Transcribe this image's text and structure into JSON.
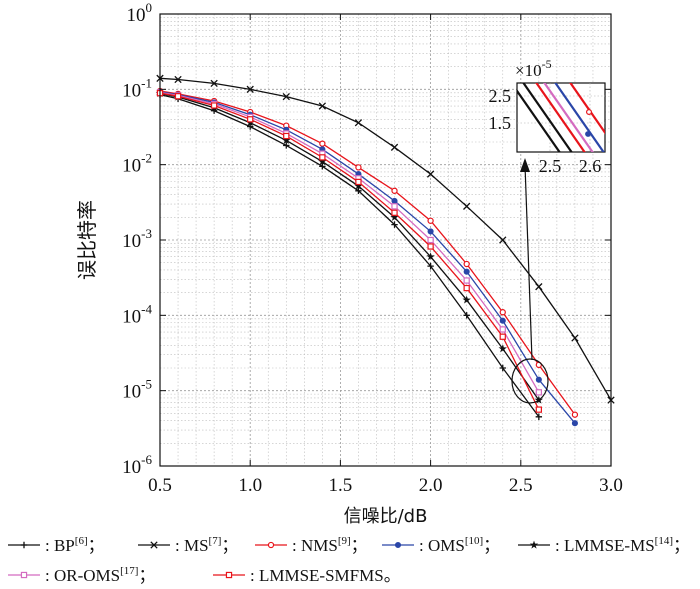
{
  "chart_data": {
    "type": "line",
    "xlabel": "信噪比/dB",
    "ylabel": "误比特率",
    "y_scale": "log",
    "xlim": [
      0.5,
      3.0
    ],
    "ylim_exp": [
      -6,
      0
    ],
    "x_ticks": [
      "0.5",
      "1.0",
      "1.5",
      "2.0",
      "2.5",
      "3.0"
    ],
    "y_tick_base": "10",
    "y_tick_exps": [
      "0",
      "-1",
      "-2",
      "-3",
      "-4",
      "-5",
      "-6"
    ],
    "grid": true,
    "series": [
      {
        "name": "BP",
        "ref": "[6]",
        "sep": "；",
        "color": "#111111",
        "marker": "plus",
        "x": [
          0.5,
          0.6,
          0.8,
          1.0,
          1.2,
          1.4,
          1.6,
          1.8,
          2.0,
          2.2,
          2.4,
          2.6
        ],
        "y": [
          0.085,
          0.075,
          0.052,
          0.032,
          0.018,
          0.0095,
          0.0045,
          0.0016,
          0.00045,
          0.0001,
          2e-05,
          4.5e-06
        ]
      },
      {
        "name": "MS",
        "ref": "[7]",
        "sep": "；",
        "color": "#111111",
        "marker": "x",
        "x": [
          0.5,
          0.6,
          0.8,
          1.0,
          1.2,
          1.4,
          1.6,
          1.8,
          2.0,
          2.2,
          2.4,
          2.6,
          2.8,
          3.0
        ],
        "y": [
          0.14,
          0.135,
          0.12,
          0.1,
          0.08,
          0.06,
          0.036,
          0.017,
          0.0075,
          0.0028,
          0.001,
          0.00024,
          5e-05,
          7.5e-06
        ]
      },
      {
        "name": "NMS",
        "ref": "[9]",
        "sep": "；",
        "color": "#e8141b",
        "marker": "circle",
        "x": [
          0.5,
          0.6,
          0.8,
          1.0,
          1.2,
          1.4,
          1.6,
          1.8,
          2.0,
          2.2,
          2.4,
          2.6,
          2.8
        ],
        "y": [
          0.095,
          0.087,
          0.07,
          0.05,
          0.033,
          0.019,
          0.0092,
          0.0045,
          0.0018,
          0.00048,
          0.00011,
          2.2e-05,
          4.8e-06
        ]
      },
      {
        "name": "OMS",
        "ref": "[10]",
        "sep": "；",
        "color": "#2a46a8",
        "marker": "dot",
        "x": [
          0.5,
          0.6,
          0.8,
          1.0,
          1.2,
          1.4,
          1.6,
          1.8,
          2.0,
          2.2,
          2.4,
          2.6,
          2.8
        ],
        "y": [
          0.093,
          0.085,
          0.067,
          0.046,
          0.029,
          0.016,
          0.0075,
          0.0033,
          0.0013,
          0.00038,
          8.5e-05,
          1.4e-05,
          3.7e-06
        ]
      },
      {
        "name": "LMMSE-MS",
        "ref": "[14]",
        "sep": "；",
        "color": "#111111",
        "marker": "star",
        "x": [
          0.5,
          0.6,
          0.8,
          1.0,
          1.2,
          1.4,
          1.6,
          1.8,
          2.0,
          2.2,
          2.4,
          2.6
        ],
        "y": [
          0.088,
          0.079,
          0.057,
          0.036,
          0.021,
          0.011,
          0.0052,
          0.002,
          0.0006,
          0.00016,
          3.6e-05,
          7.5e-06
        ]
      },
      {
        "name": "OR-OMS",
        "ref": "[17]",
        "sep": "；",
        "color": "#d46bc0",
        "marker": "square",
        "x": [
          0.5,
          0.6,
          0.8,
          1.0,
          1.2,
          1.4,
          1.6,
          1.8,
          2.0,
          2.2,
          2.4,
          2.6
        ],
        "y": [
          0.091,
          0.083,
          0.064,
          0.043,
          0.026,
          0.014,
          0.0066,
          0.0028,
          0.001,
          0.00029,
          6.5e-05,
          9.5e-06
        ]
      },
      {
        "name": "LMMSE-SMFMS",
        "ref": "",
        "sep": "。",
        "color": "#e8141b",
        "marker": "square",
        "x": [
          0.5,
          0.6,
          0.8,
          1.0,
          1.2,
          1.4,
          1.6,
          1.8,
          2.0,
          2.2,
          2.4,
          2.6
        ],
        "y": [
          0.089,
          0.081,
          0.061,
          0.04,
          0.024,
          0.0125,
          0.0059,
          0.0023,
          0.00082,
          0.00023,
          5.2e-05,
          5.6e-06
        ]
      }
    ],
    "inset": {
      "exponent_label": "×10",
      "exponent_power": "-5",
      "y_ticks": [
        "2.5",
        "1.5"
      ],
      "x_ticks": [
        "2.5",
        "2.6"
      ]
    }
  }
}
